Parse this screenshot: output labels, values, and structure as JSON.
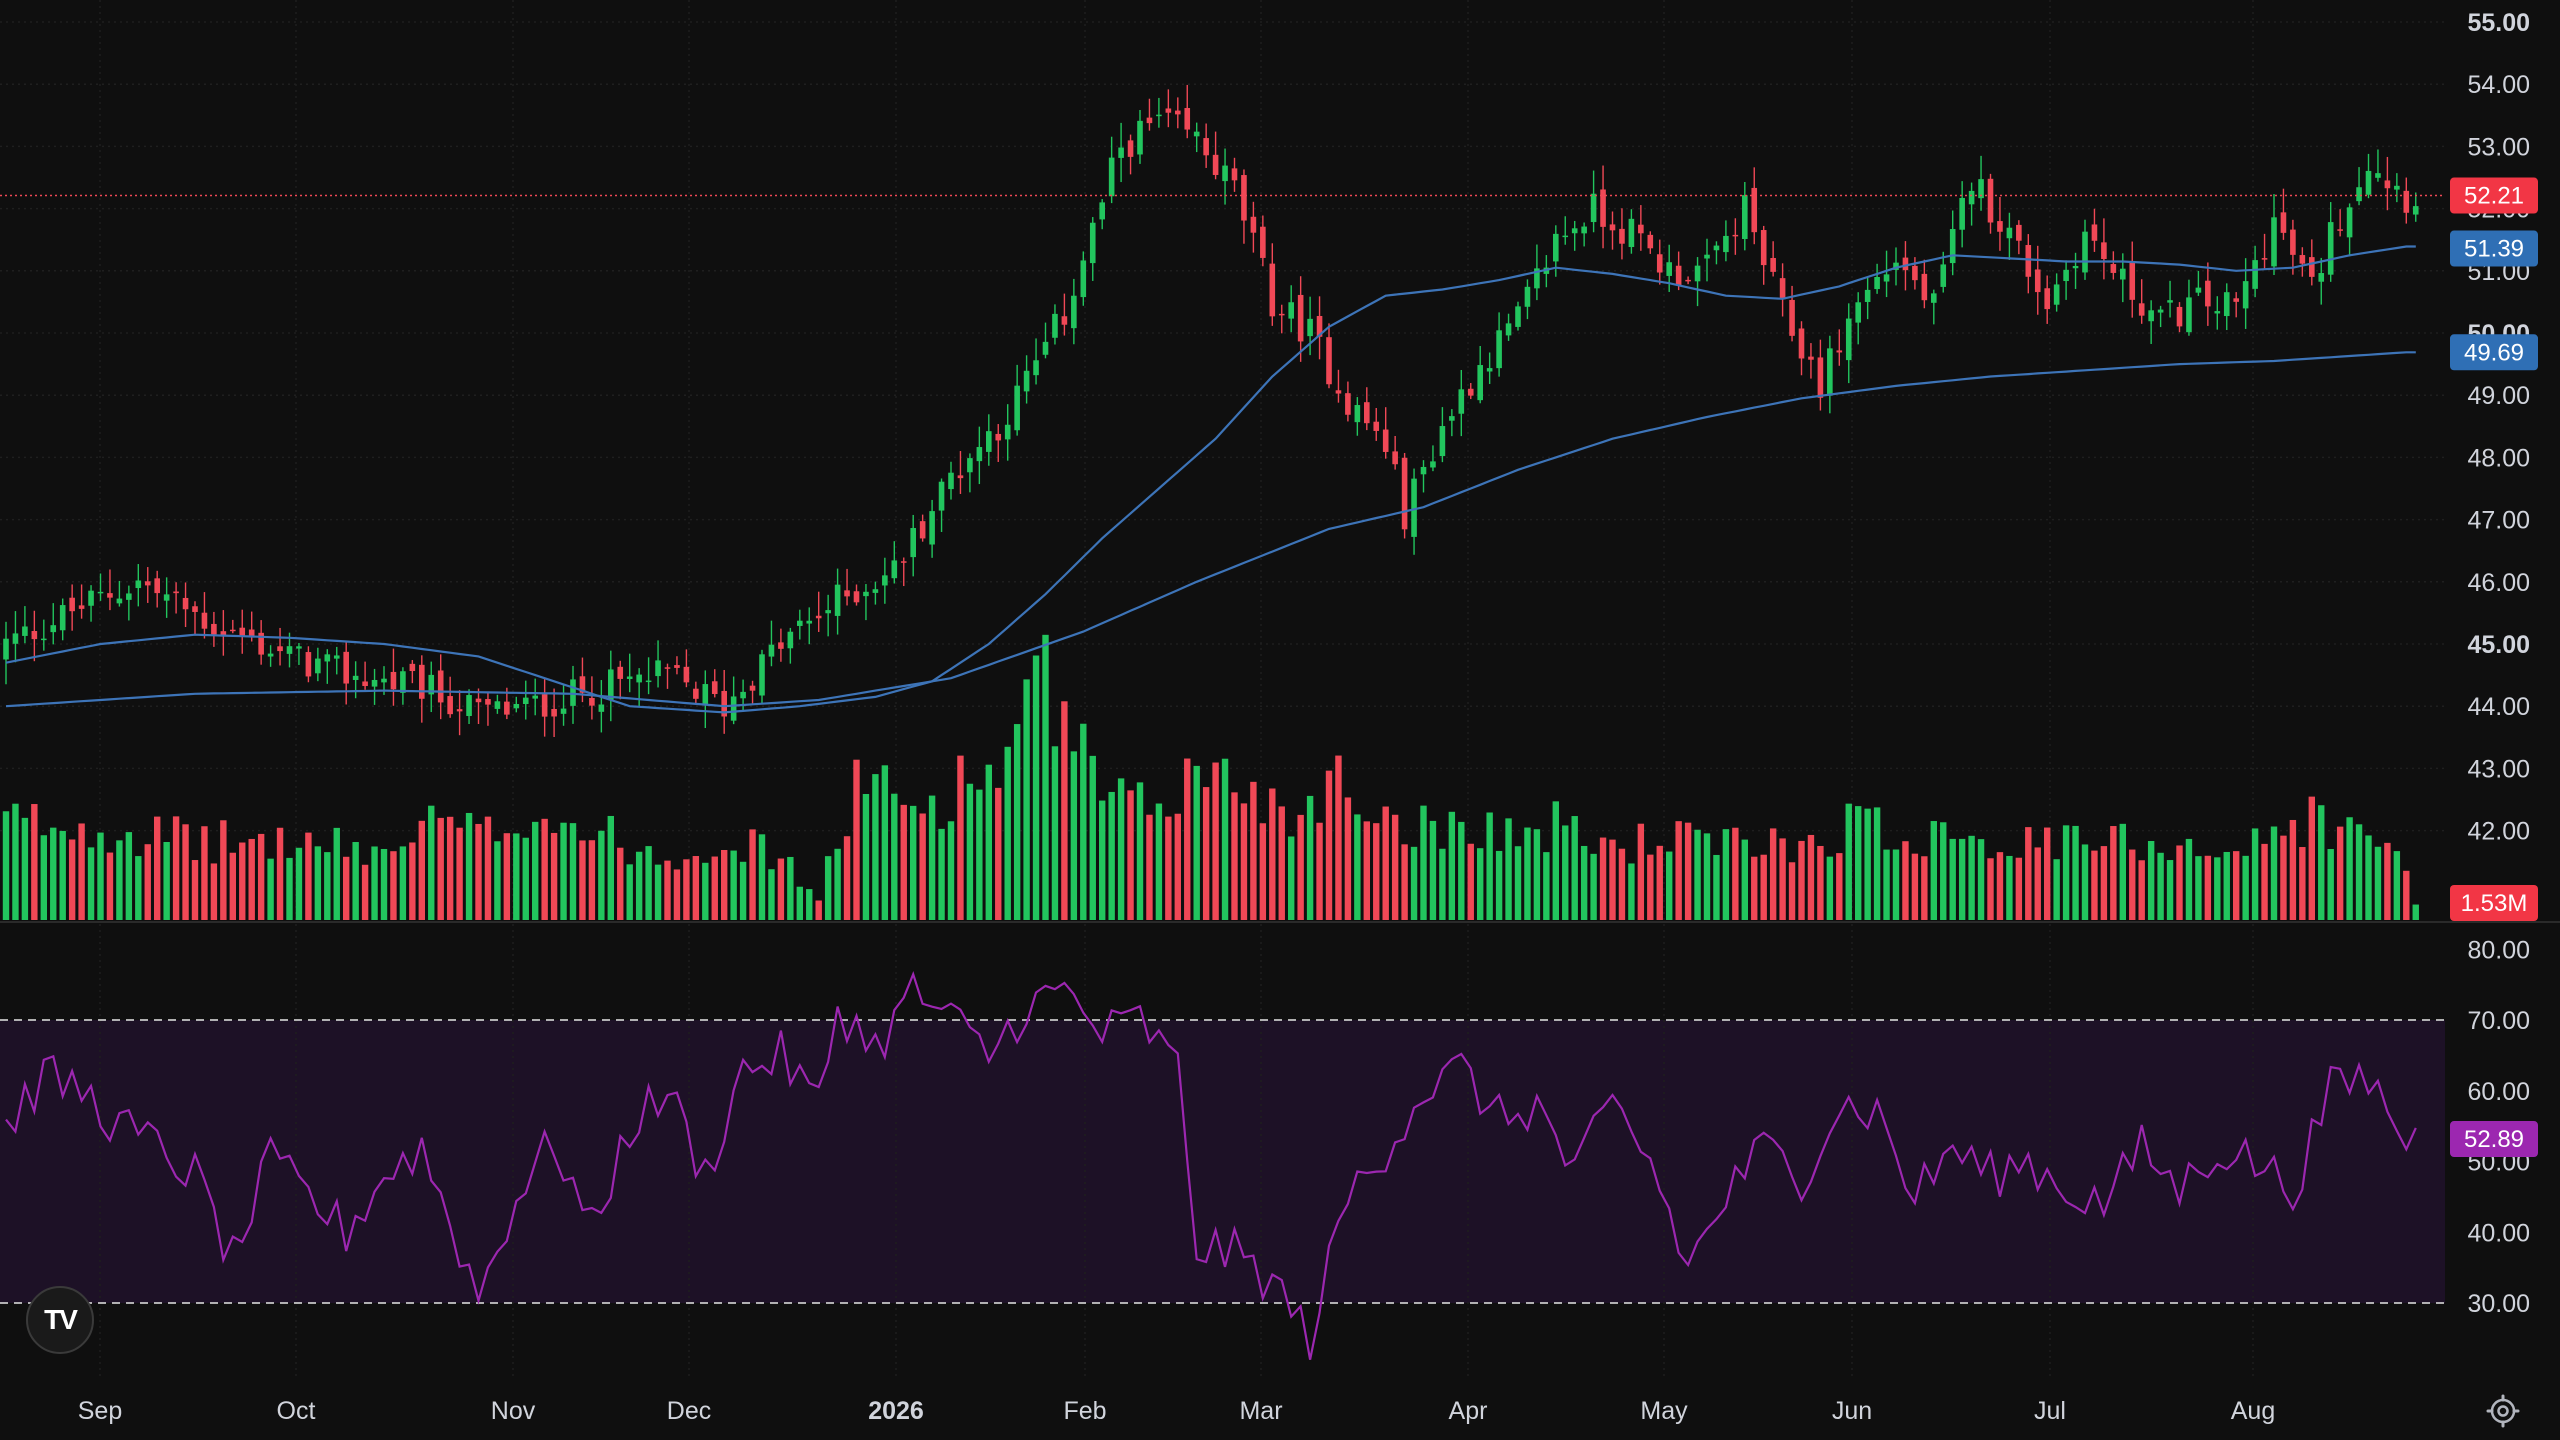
{
  "chart_data": {
    "type": "candlestick",
    "price_axis": {
      "ticks": [
        "55.00",
        "54.00",
        "53.00",
        "52.00",
        "51.00",
        "50.00",
        "49.00",
        "48.00",
        "47.00",
        "46.00",
        "45.00",
        "44.00",
        "43.00",
        "42.00"
      ],
      "bold_ticks": [
        "55.00",
        "50.00",
        "45.00"
      ],
      "range": [
        41.0,
        55.5
      ]
    },
    "time_axis": {
      "labels": [
        "Sep",
        "Oct",
        "Nov",
        "Dec",
        "2026",
        "Feb",
        "Mar",
        "Apr",
        "May",
        "Jun",
        "Jul",
        "Aug"
      ],
      "bold_labels": [
        "2026"
      ]
    },
    "tags": {
      "last_price": "52.21",
      "ma_fast": "51.39",
      "ma_slow": "49.69",
      "volume": "1.53M",
      "rsi": "52.89"
    },
    "rsi_axis": {
      "ticks": [
        "80.00",
        "70.00",
        "60.00",
        "50.00",
        "40.00",
        "30.00"
      ],
      "range": [
        22,
        82
      ],
      "upper_band": 70,
      "lower_band": 30
    },
    "anchors": {
      "close": [
        [
          0,
          45.0
        ],
        [
          8,
          45.6
        ],
        [
          14,
          46.0
        ],
        [
          22,
          45.3
        ],
        [
          30,
          44.8
        ],
        [
          36,
          44.5
        ],
        [
          44,
          44.3
        ],
        [
          50,
          43.9
        ],
        [
          56,
          44.0
        ],
        [
          63,
          44.3
        ],
        [
          70,
          44.5
        ],
        [
          76,
          44.0
        ],
        [
          82,
          45.0
        ],
        [
          88,
          45.7
        ],
        [
          94,
          46.2
        ],
        [
          100,
          47.7
        ],
        [
          106,
          48.7
        ],
        [
          112,
          50.3
        ],
        [
          118,
          53.0
        ],
        [
          122,
          53.4
        ],
        [
          126,
          53.1
        ],
        [
          130,
          52.3
        ],
        [
          134,
          50.5
        ],
        [
          138,
          50.0
        ],
        [
          142,
          48.9
        ],
        [
          146,
          48.2
        ],
        [
          148,
          47.1
        ],
        [
          152,
          48.5
        ],
        [
          156,
          49.5
        ],
        [
          160,
          50.2
        ],
        [
          164,
          51.5
        ],
        [
          168,
          52.0
        ],
        [
          172,
          51.6
        ],
        [
          176,
          51.0
        ],
        [
          180,
          51.0
        ],
        [
          184,
          52.0
        ],
        [
          188,
          50.3
        ],
        [
          192,
          49.2
        ],
        [
          196,
          50.5
        ],
        [
          200,
          51.2
        ],
        [
          204,
          50.4
        ],
        [
          208,
          52.5
        ],
        [
          212,
          51.6
        ],
        [
          216,
          50.5
        ],
        [
          220,
          51.6
        ],
        [
          224,
          50.8
        ],
        [
          228,
          50.2
        ],
        [
          232,
          50.5
        ],
        [
          236,
          50.4
        ],
        [
          240,
          51.8
        ],
        [
          244,
          50.7
        ],
        [
          246,
          51.6
        ],
        [
          250,
          52.8
        ],
        [
          254,
          52.2
        ]
      ],
      "volume": [
        [
          0,
          19
        ],
        [
          10,
          18
        ],
        [
          20,
          15
        ],
        [
          30,
          15
        ],
        [
          40,
          13
        ],
        [
          46,
          19
        ],
        [
          50,
          16
        ],
        [
          56,
          21
        ],
        [
          62,
          17
        ],
        [
          70,
          12
        ],
        [
          76,
          16
        ],
        [
          82,
          12
        ],
        [
          86,
          4
        ],
        [
          90,
          27
        ],
        [
          96,
          21
        ],
        [
          100,
          25
        ],
        [
          106,
          31
        ],
        [
          110,
          45
        ],
        [
          116,
          23
        ],
        [
          120,
          21
        ],
        [
          126,
          28
        ],
        [
          132,
          26
        ],
        [
          136,
          19
        ],
        [
          140,
          28
        ],
        [
          144,
          22
        ],
        [
          150,
          18
        ],
        [
          156,
          19
        ],
        [
          160,
          16
        ],
        [
          164,
          18
        ],
        [
          170,
          14
        ],
        [
          176,
          16
        ],
        [
          182,
          14
        ],
        [
          186,
          15
        ],
        [
          192,
          15
        ],
        [
          196,
          20
        ],
        [
          200,
          15
        ],
        [
          206,
          19
        ],
        [
          212,
          14
        ],
        [
          218,
          15
        ],
        [
          224,
          15
        ],
        [
          230,
          15
        ],
        [
          236,
          13
        ],
        [
          240,
          16
        ],
        [
          244,
          20
        ],
        [
          250,
          15
        ],
        [
          254,
          12
        ],
        [
          255,
          3
        ]
      ],
      "rsi": [
        [
          0,
          55
        ],
        [
          4,
          62
        ],
        [
          8,
          60
        ],
        [
          12,
          55
        ],
        [
          16,
          52
        ],
        [
          20,
          48
        ],
        [
          24,
          36
        ],
        [
          28,
          50
        ],
        [
          32,
          45
        ],
        [
          36,
          40
        ],
        [
          40,
          48
        ],
        [
          44,
          52
        ],
        [
          48,
          38
        ],
        [
          50,
          31
        ],
        [
          54,
          45
        ],
        [
          58,
          53
        ],
        [
          62,
          40
        ],
        [
          66,
          55
        ],
        [
          70,
          60
        ],
        [
          74,
          48
        ],
        [
          78,
          63
        ],
        [
          82,
          65
        ],
        [
          86,
          58
        ],
        [
          88,
          72
        ],
        [
          92,
          66
        ],
        [
          96,
          74
        ],
        [
          100,
          70
        ],
        [
          104,
          65
        ],
        [
          108,
          72
        ],
        [
          112,
          74
        ],
        [
          116,
          68
        ],
        [
          120,
          70
        ],
        [
          124,
          63
        ],
        [
          126,
          38
        ],
        [
          130,
          37
        ],
        [
          134,
          33
        ],
        [
          138,
          25
        ],
        [
          142,
          45
        ],
        [
          146,
          52
        ],
        [
          150,
          60
        ],
        [
          154,
          63
        ],
        [
          158,
          56
        ],
        [
          162,
          58
        ],
        [
          166,
          48
        ],
        [
          170,
          58
        ],
        [
          174,
          50
        ],
        [
          178,
          35
        ],
        [
          182,
          45
        ],
        [
          186,
          52
        ],
        [
          190,
          48
        ],
        [
          194,
          58
        ],
        [
          198,
          57
        ],
        [
          202,
          45
        ],
        [
          206,
          52
        ],
        [
          210,
          48
        ],
        [
          214,
          50
        ],
        [
          218,
          46
        ],
        [
          222,
          44
        ],
        [
          226,
          52
        ],
        [
          230,
          46
        ],
        [
          234,
          52
        ],
        [
          238,
          50
        ],
        [
          242,
          46
        ],
        [
          246,
          60
        ],
        [
          250,
          62
        ],
        [
          254,
          53
        ]
      ],
      "ma_fast": [
        [
          0,
          44.7
        ],
        [
          10,
          45.0
        ],
        [
          20,
          45.15
        ],
        [
          30,
          45.1
        ],
        [
          40,
          45.0
        ],
        [
          50,
          44.8
        ],
        [
          58,
          44.4
        ],
        [
          66,
          44.0
        ],
        [
          76,
          43.9
        ],
        [
          84,
          44.0
        ],
        [
          92,
          44.15
        ],
        [
          98,
          44.4
        ],
        [
          104,
          45.0
        ],
        [
          110,
          45.8
        ],
        [
          116,
          46.7
        ],
        [
          122,
          47.5
        ],
        [
          128,
          48.3
        ],
        [
          134,
          49.3
        ],
        [
          140,
          50.1
        ],
        [
          146,
          50.6
        ],
        [
          152,
          50.7
        ],
        [
          158,
          50.85
        ],
        [
          164,
          51.05
        ],
        [
          170,
          50.95
        ],
        [
          176,
          50.8
        ],
        [
          182,
          50.6
        ],
        [
          188,
          50.55
        ],
        [
          194,
          50.75
        ],
        [
          200,
          51.05
        ],
        [
          206,
          51.25
        ],
        [
          212,
          51.2
        ],
        [
          218,
          51.15
        ],
        [
          224,
          51.15
        ],
        [
          230,
          51.1
        ],
        [
          236,
          51.0
        ],
        [
          242,
          51.05
        ],
        [
          248,
          51.25
        ],
        [
          254,
          51.39
        ]
      ],
      "ma_slow": [
        [
          0,
          44.0
        ],
        [
          20,
          44.2
        ],
        [
          40,
          44.25
        ],
        [
          60,
          44.2
        ],
        [
          76,
          44.0
        ],
        [
          86,
          44.1
        ],
        [
          100,
          44.45
        ],
        [
          114,
          45.2
        ],
        [
          126,
          46.0
        ],
        [
          140,
          46.85
        ],
        [
          150,
          47.2
        ],
        [
          160,
          47.8
        ],
        [
          170,
          48.3
        ],
        [
          180,
          48.65
        ],
        [
          190,
          48.95
        ],
        [
          200,
          49.15
        ],
        [
          210,
          49.3
        ],
        [
          220,
          49.4
        ],
        [
          230,
          49.5
        ],
        [
          240,
          49.55
        ],
        [
          254,
          49.69
        ]
      ]
    }
  }
}
